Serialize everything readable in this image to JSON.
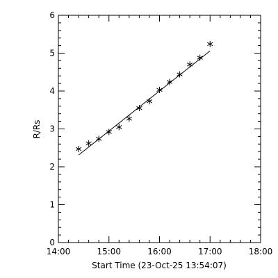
{
  "chart_data": {
    "type": "scatter",
    "title": "",
    "xlabel": "Start Time (23-Oct-25 13:54:07)",
    "ylabel": "R/Rs",
    "xlim": [
      "14:00",
      "18:00"
    ],
    "ylim": [
      0,
      6
    ],
    "x_ticks": [
      "14:00",
      "15:00",
      "16:00",
      "17:00",
      "18:00"
    ],
    "y_ticks": [
      "0",
      "1",
      "2",
      "3",
      "4",
      "5",
      "6"
    ],
    "marker": "asterisk",
    "grid": false,
    "series": [
      {
        "x": [
          "14:24",
          "14:36",
          "14:48",
          "15:00",
          "15:12",
          "15:24",
          "15:36",
          "15:48",
          "16:00",
          "16:12",
          "16:24",
          "16:36",
          "16:48",
          "17:00"
        ],
        "y": [
          2.47,
          2.62,
          2.74,
          2.92,
          3.05,
          3.27,
          3.55,
          3.73,
          4.03,
          4.24,
          4.44,
          4.7,
          4.88,
          5.24
        ]
      }
    ],
    "fit_line": {
      "x": [
        "14:24",
        "17:00"
      ],
      "y": [
        2.31,
        5.06
      ]
    }
  }
}
